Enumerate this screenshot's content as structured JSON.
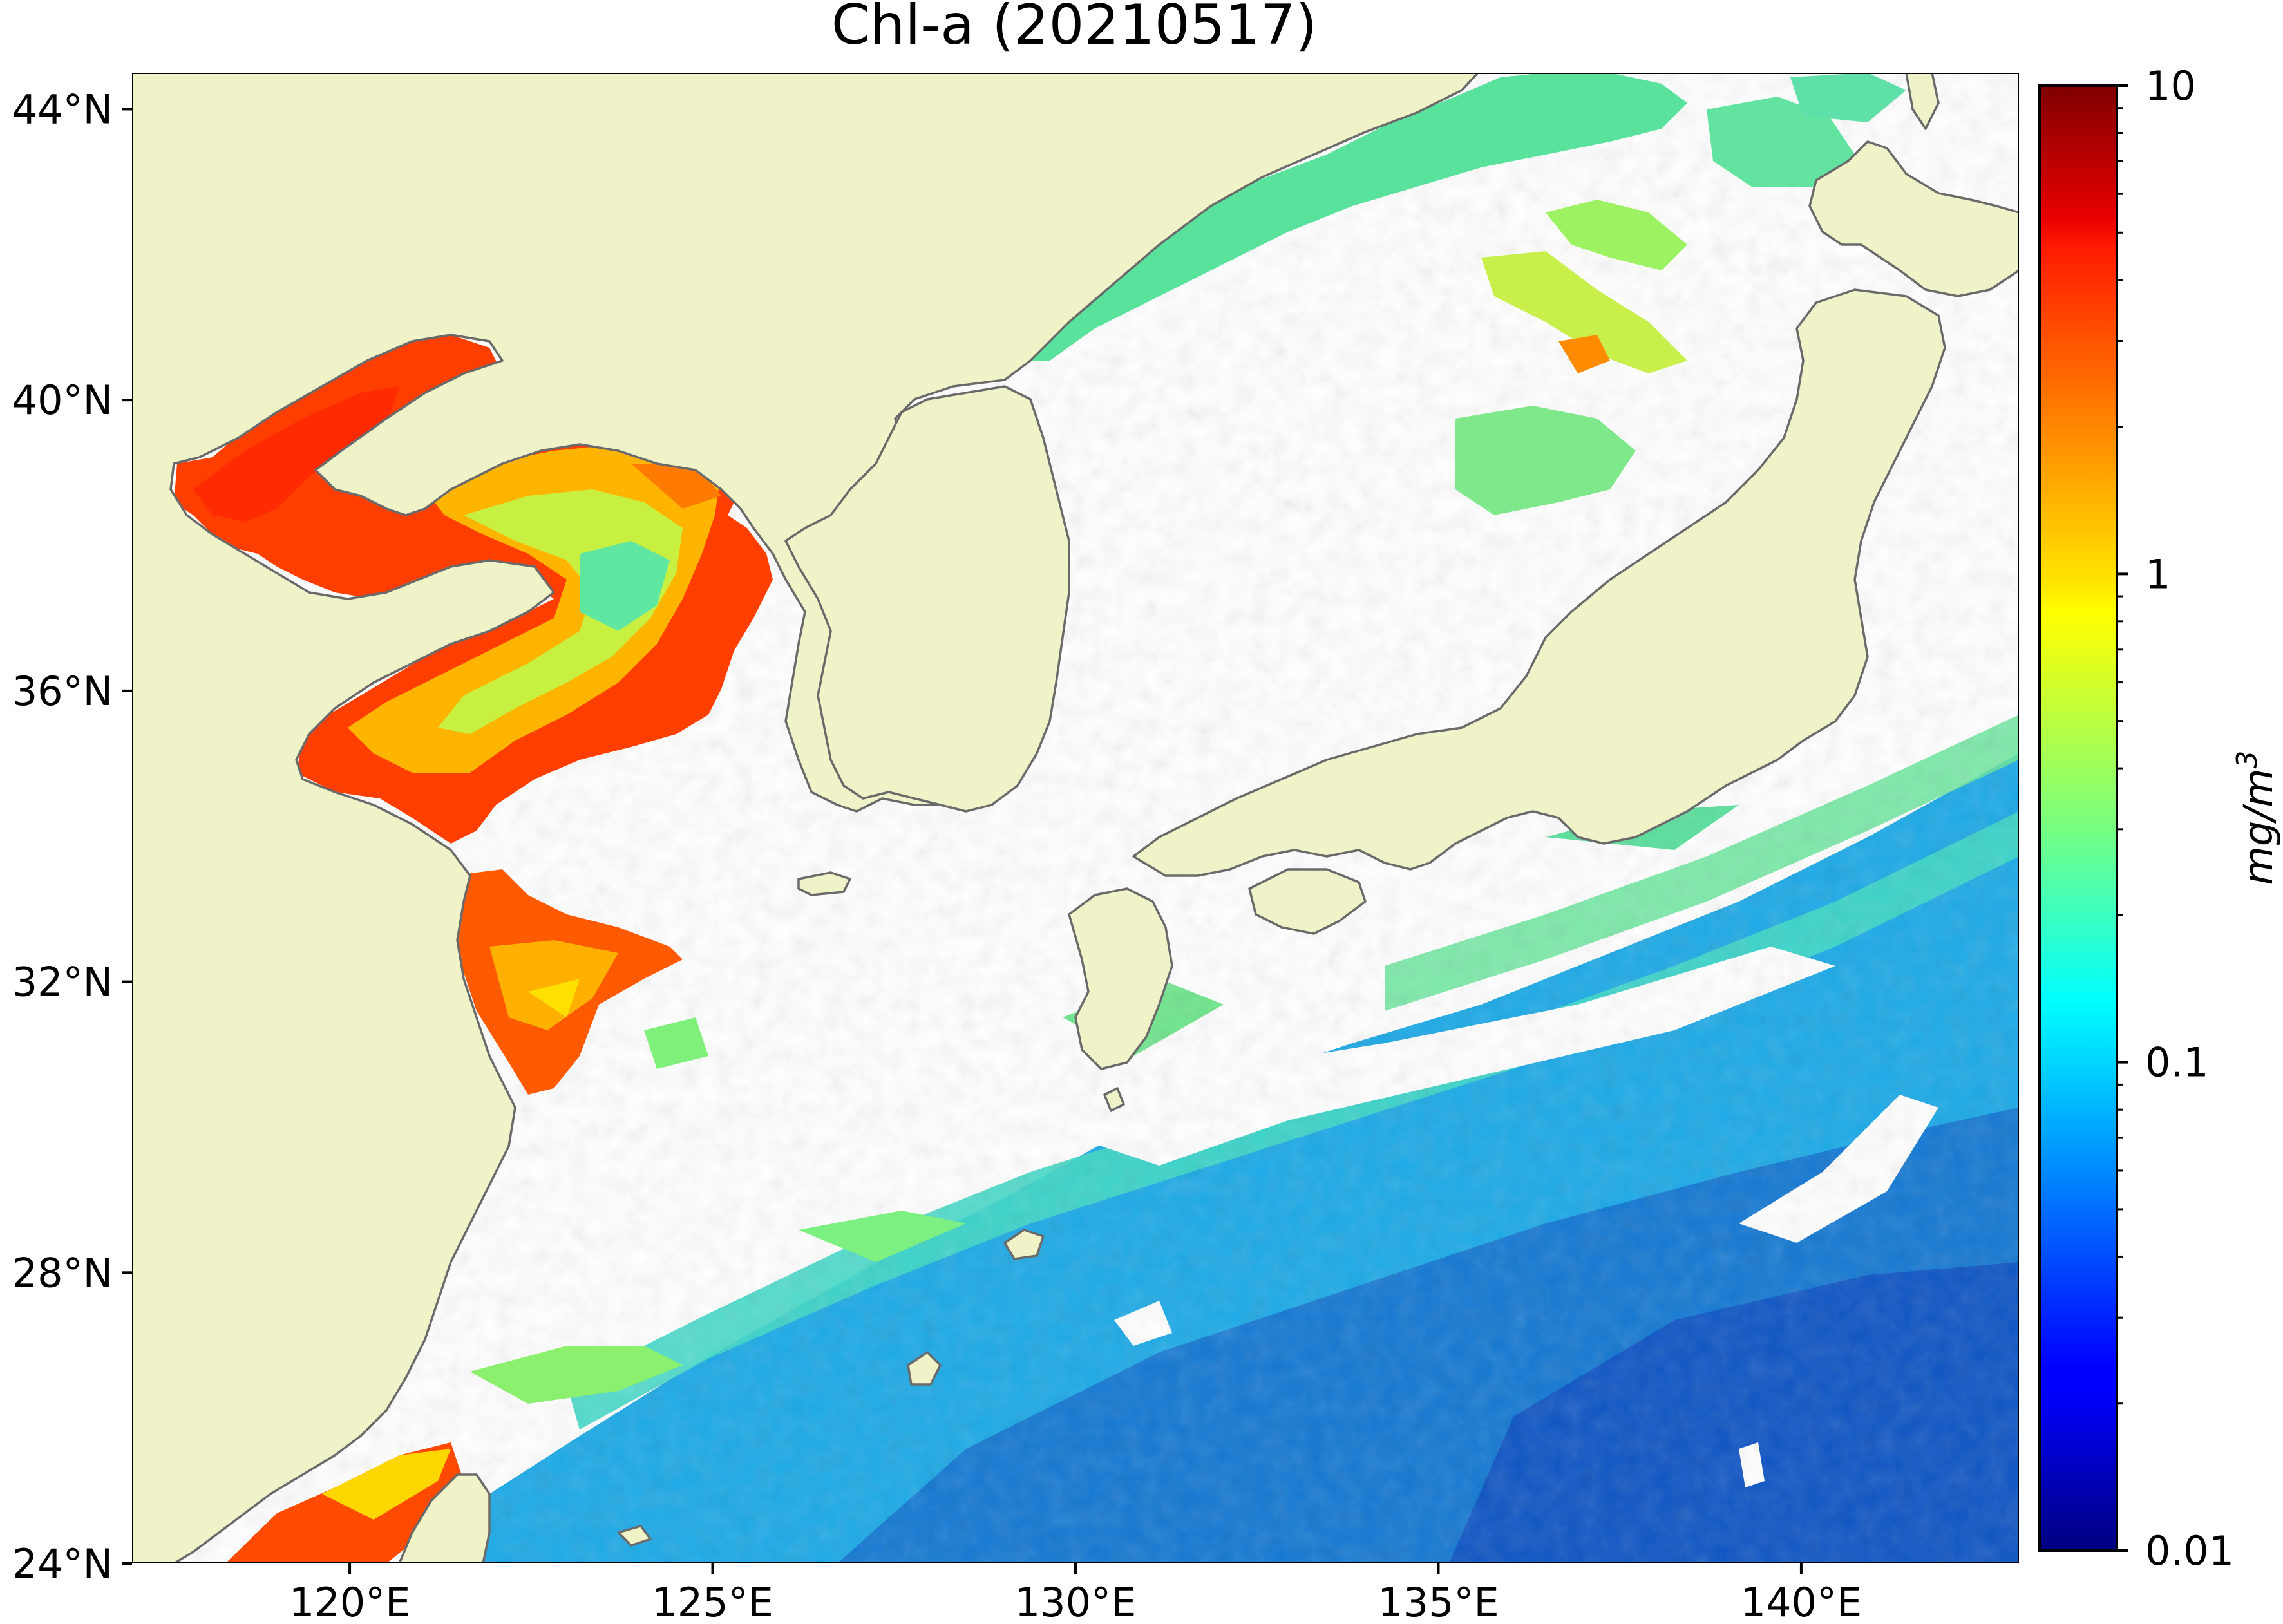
{
  "map": {
    "title": "Chl-a (20210517)",
    "lon_range": [
      117,
      143
    ],
    "lat_range": [
      24,
      44.5
    ],
    "lon_ticks": [
      {
        "value": 120,
        "label": "120°E"
      },
      {
        "value": 125,
        "label": "125°E"
      },
      {
        "value": 130,
        "label": "130°E"
      },
      {
        "value": 135,
        "label": "135°E"
      },
      {
        "value": 140,
        "label": "140°E"
      }
    ],
    "lat_ticks": [
      {
        "value": 24,
        "label": "24°N"
      },
      {
        "value": 28,
        "label": "28°N"
      },
      {
        "value": 32,
        "label": "32°N"
      },
      {
        "value": 36,
        "label": "36°N"
      },
      {
        "value": 40,
        "label": "40°N"
      },
      {
        "value": 44,
        "label": "44°N"
      }
    ],
    "land_color": "#f0f3c8",
    "coast_color": "#6a6a6a",
    "no_data_color": "#ffffff"
  },
  "colorbar": {
    "label": "mg/m3",
    "label_base": "mg/m",
    "label_sup": "3",
    "scale": "log",
    "range": [
      0.01,
      10
    ],
    "colormap": "jet",
    "ticks": [
      {
        "value": 0.01,
        "label": "0.01"
      },
      {
        "value": 0.1,
        "label": "0.1"
      },
      {
        "value": 1,
        "label": "1"
      },
      {
        "value": 10,
        "label": "10"
      }
    ]
  }
}
